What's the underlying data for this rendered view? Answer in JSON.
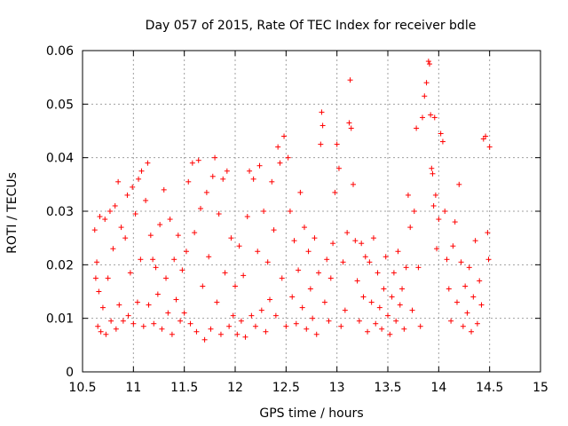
{
  "chart_data": {
    "type": "scatter",
    "title": "Day 057 of 2015, Rate Of TEC Index for receiver bdle",
    "xlabel": "GPS time / hours",
    "ylabel": "ROTI / TECUs",
    "xlim": [
      10.5,
      15
    ],
    "ylim": [
      0,
      0.06
    ],
    "x_ticks": [
      "10.5",
      "11",
      "11.5",
      "12",
      "12.5",
      "13",
      "13.5",
      "14",
      "14.5",
      "15"
    ],
    "y_ticks": [
      "0",
      "0.01",
      "0.02",
      "0.03",
      "0.04",
      "0.05",
      "0.06"
    ],
    "grid": true,
    "marker": "+",
    "color": "#ff0000",
    "series": [
      {
        "name": "ROTI",
        "points": [
          [
            10.62,
            0.0265
          ],
          [
            10.63,
            0.0175
          ],
          [
            10.64,
            0.0205
          ],
          [
            10.65,
            0.0085
          ],
          [
            10.66,
            0.015
          ],
          [
            10.67,
            0.029
          ],
          [
            10.68,
            0.0075
          ],
          [
            10.7,
            0.012
          ],
          [
            10.72,
            0.0285
          ],
          [
            10.73,
            0.007
          ],
          [
            10.75,
            0.0175
          ],
          [
            10.77,
            0.03
          ],
          [
            10.78,
            0.0095
          ],
          [
            10.8,
            0.023
          ],
          [
            10.82,
            0.031
          ],
          [
            10.83,
            0.008
          ],
          [
            10.85,
            0.0355
          ],
          [
            10.86,
            0.0125
          ],
          [
            10.88,
            0.027
          ],
          [
            10.9,
            0.0095
          ],
          [
            10.92,
            0.025
          ],
          [
            10.94,
            0.033
          ],
          [
            10.95,
            0.0105
          ],
          [
            10.97,
            0.0185
          ],
          [
            10.99,
            0.0345
          ],
          [
            11.0,
            0.009
          ],
          [
            11.02,
            0.0295
          ],
          [
            11.04,
            0.013
          ],
          [
            11.05,
            0.036
          ],
          [
            11.07,
            0.021
          ],
          [
            11.08,
            0.0375
          ],
          [
            11.1,
            0.0085
          ],
          [
            11.12,
            0.032
          ],
          [
            11.14,
            0.039
          ],
          [
            11.15,
            0.0125
          ],
          [
            11.17,
            0.0255
          ],
          [
            11.19,
            0.021
          ],
          [
            11.2,
            0.009
          ],
          [
            11.22,
            0.0195
          ],
          [
            11.24,
            0.0145
          ],
          [
            11.26,
            0.0275
          ],
          [
            11.28,
            0.008
          ],
          [
            11.3,
            0.034
          ],
          [
            11.32,
            0.0175
          ],
          [
            11.34,
            0.011
          ],
          [
            11.36,
            0.0285
          ],
          [
            11.38,
            0.007
          ],
          [
            11.4,
            0.021
          ],
          [
            11.42,
            0.0135
          ],
          [
            11.44,
            0.0255
          ],
          [
            11.46,
            0.0095
          ],
          [
            11.48,
            0.019
          ],
          [
            11.5,
            0.011
          ],
          [
            11.52,
            0.0225
          ],
          [
            11.54,
            0.0355
          ],
          [
            11.56,
            0.009
          ],
          [
            11.58,
            0.039
          ],
          [
            11.6,
            0.026
          ],
          [
            11.62,
            0.0075
          ],
          [
            11.64,
            0.0395
          ],
          [
            11.66,
            0.0305
          ],
          [
            11.68,
            0.016
          ],
          [
            11.7,
            0.006
          ],
          [
            11.72,
            0.0335
          ],
          [
            11.74,
            0.0215
          ],
          [
            11.76,
            0.008
          ],
          [
            11.78,
            0.0365
          ],
          [
            11.8,
            0.04
          ],
          [
            11.82,
            0.013
          ],
          [
            11.84,
            0.0295
          ],
          [
            11.86,
            0.007
          ],
          [
            11.88,
            0.036
          ],
          [
            11.9,
            0.0185
          ],
          [
            11.92,
            0.0375
          ],
          [
            11.94,
            0.0085
          ],
          [
            11.96,
            0.025
          ],
          [
            11.98,
            0.0105
          ],
          [
            12.0,
            0.016
          ],
          [
            12.02,
            0.007
          ],
          [
            12.04,
            0.0235
          ],
          [
            12.06,
            0.0095
          ],
          [
            12.08,
            0.018
          ],
          [
            12.1,
            0.0065
          ],
          [
            12.12,
            0.029
          ],
          [
            12.14,
            0.0375
          ],
          [
            12.16,
            0.0105
          ],
          [
            12.18,
            0.036
          ],
          [
            12.2,
            0.0085
          ],
          [
            12.22,
            0.0225
          ],
          [
            12.24,
            0.0385
          ],
          [
            12.26,
            0.0115
          ],
          [
            12.28,
            0.03
          ],
          [
            12.3,
            0.0075
          ],
          [
            12.32,
            0.0205
          ],
          [
            12.34,
            0.0135
          ],
          [
            12.36,
            0.0355
          ],
          [
            12.38,
            0.0265
          ],
          [
            12.4,
            0.0105
          ],
          [
            12.42,
            0.042
          ],
          [
            12.44,
            0.039
          ],
          [
            12.46,
            0.0175
          ],
          [
            12.48,
            0.044
          ],
          [
            12.5,
            0.0085
          ],
          [
            12.52,
            0.04
          ],
          [
            12.54,
            0.03
          ],
          [
            12.56,
            0.014
          ],
          [
            12.58,
            0.0245
          ],
          [
            12.6,
            0.009
          ],
          [
            12.62,
            0.019
          ],
          [
            12.64,
            0.0335
          ],
          [
            12.66,
            0.012
          ],
          [
            12.68,
            0.027
          ],
          [
            12.7,
            0.008
          ],
          [
            12.72,
            0.0225
          ],
          [
            12.74,
            0.0155
          ],
          [
            12.76,
            0.01
          ],
          [
            12.78,
            0.025
          ],
          [
            12.8,
            0.007
          ],
          [
            12.82,
            0.0185
          ],
          [
            12.84,
            0.0425
          ],
          [
            12.85,
            0.0485
          ],
          [
            12.86,
            0.046
          ],
          [
            12.88,
            0.013
          ],
          [
            12.9,
            0.021
          ],
          [
            12.92,
            0.0095
          ],
          [
            12.94,
            0.0175
          ],
          [
            12.96,
            0.024
          ],
          [
            12.98,
            0.0335
          ],
          [
            13.0,
            0.0425
          ],
          [
            13.02,
            0.038
          ],
          [
            13.04,
            0.0085
          ],
          [
            13.06,
            0.0205
          ],
          [
            13.08,
            0.0115
          ],
          [
            13.1,
            0.026
          ],
          [
            13.12,
            0.0465
          ],
          [
            13.13,
            0.0545
          ],
          [
            13.14,
            0.0455
          ],
          [
            13.16,
            0.035
          ],
          [
            13.18,
            0.0245
          ],
          [
            13.2,
            0.017
          ],
          [
            13.22,
            0.0095
          ],
          [
            13.24,
            0.024
          ],
          [
            13.26,
            0.014
          ],
          [
            13.28,
            0.0215
          ],
          [
            13.3,
            0.0075
          ],
          [
            13.32,
            0.0205
          ],
          [
            13.34,
            0.013
          ],
          [
            13.36,
            0.025
          ],
          [
            13.38,
            0.009
          ],
          [
            13.4,
            0.0185
          ],
          [
            13.42,
            0.012
          ],
          [
            13.44,
            0.008
          ],
          [
            13.46,
            0.0155
          ],
          [
            13.48,
            0.0215
          ],
          [
            13.5,
            0.0105
          ],
          [
            13.52,
            0.007
          ],
          [
            13.54,
            0.014
          ],
          [
            13.56,
            0.0185
          ],
          [
            13.58,
            0.0095
          ],
          [
            13.6,
            0.0225
          ],
          [
            13.62,
            0.0125
          ],
          [
            13.64,
            0.0155
          ],
          [
            13.66,
            0.008
          ],
          [
            13.68,
            0.0195
          ],
          [
            13.7,
            0.033
          ],
          [
            13.72,
            0.027
          ],
          [
            13.74,
            0.0115
          ],
          [
            13.76,
            0.03
          ],
          [
            13.78,
            0.0455
          ],
          [
            13.8,
            0.0195
          ],
          [
            13.82,
            0.0085
          ],
          [
            13.84,
            0.0475
          ],
          [
            13.86,
            0.0515
          ],
          [
            13.88,
            0.054
          ],
          [
            13.9,
            0.058
          ],
          [
            13.91,
            0.0575
          ],
          [
            13.92,
            0.048
          ],
          [
            13.93,
            0.038
          ],
          [
            13.94,
            0.037
          ],
          [
            13.95,
            0.031
          ],
          [
            13.96,
            0.0475
          ],
          [
            13.97,
            0.033
          ],
          [
            13.98,
            0.023
          ],
          [
            14.0,
            0.0285
          ],
          [
            14.02,
            0.0445
          ],
          [
            14.04,
            0.043
          ],
          [
            14.06,
            0.03
          ],
          [
            14.08,
            0.021
          ],
          [
            14.1,
            0.0155
          ],
          [
            14.12,
            0.0095
          ],
          [
            14.14,
            0.0235
          ],
          [
            14.16,
            0.028
          ],
          [
            14.18,
            0.013
          ],
          [
            14.2,
            0.035
          ],
          [
            14.22,
            0.0205
          ],
          [
            14.24,
            0.0085
          ],
          [
            14.26,
            0.016
          ],
          [
            14.28,
            0.011
          ],
          [
            14.3,
            0.0195
          ],
          [
            14.32,
            0.0075
          ],
          [
            14.34,
            0.014
          ],
          [
            14.36,
            0.0245
          ],
          [
            14.38,
            0.009
          ],
          [
            14.4,
            0.017
          ],
          [
            14.42,
            0.0125
          ],
          [
            14.44,
            0.0435
          ],
          [
            14.46,
            0.044
          ],
          [
            14.48,
            0.026
          ],
          [
            14.49,
            0.021
          ],
          [
            14.5,
            0.042
          ]
        ]
      }
    ]
  }
}
